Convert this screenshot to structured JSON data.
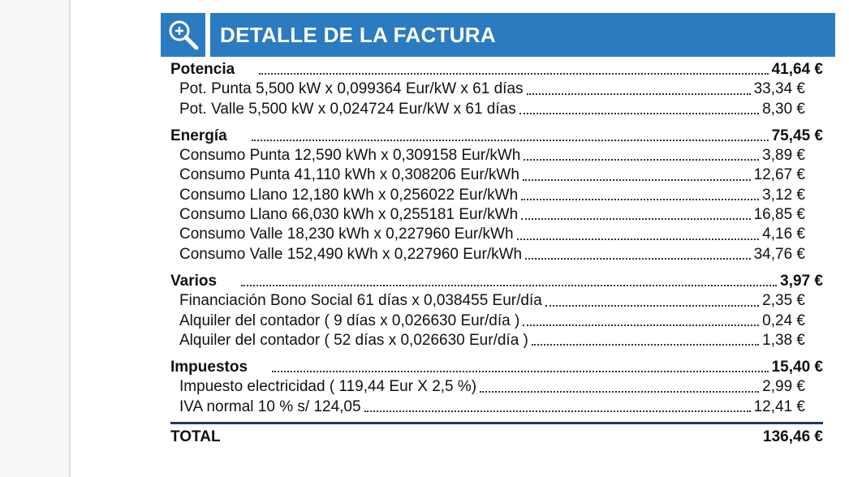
{
  "header": {
    "title": "DETALLE DE LA FACTURA",
    "icon": "zoom-in-icon"
  },
  "colors": {
    "header_bg": "#2b7bc0",
    "header_text": "#ffffff",
    "total_rule": "#1f3a6a"
  },
  "sections": [
    {
      "label": "Potencia",
      "amount": "41,64 €",
      "items": [
        {
          "label": "Pot. Punta 5,500  kW x 0,099364  Eur/kW x 61  días",
          "amount": "33,34 €"
        },
        {
          "label": "Pot. Valle 5,500  kW x 0,024724  Eur/kW x 61  días",
          "amount": "8,30 €"
        }
      ]
    },
    {
      "label": "Energía",
      "amount": "75,45 €",
      "items": [
        {
          "label": "Consumo Punta 12,590  kWh x 0,309158  Eur/kWh",
          "amount": "3,89 €"
        },
        {
          "label": "Consumo Punta 41,110  kWh x 0,308206  Eur/kWh",
          "amount": "12,67 €"
        },
        {
          "label": "Consumo Llano 12,180  kWh x 0,256022  Eur/kWh",
          "amount": "3,12 €"
        },
        {
          "label": "Consumo Llano 66,030  kWh x 0,255181  Eur/kWh",
          "amount": "16,85 €"
        },
        {
          "label": "Consumo Valle 18,230  kWh x 0,227960  Eur/kWh",
          "amount": "4,16 €"
        },
        {
          "label": "Consumo Valle 152,490  kWh x 0,227960  Eur/kWh",
          "amount": "34,76 €"
        }
      ]
    },
    {
      "label": "Varios",
      "amount": "3,97 €",
      "items": [
        {
          "label": "Financiación Bono Social 61  días x 0,038455 Eur/día",
          "amount": "2,35 €"
        },
        {
          "label": "Alquiler del contador ( 9  días x 0,026630  Eur/día )",
          "amount": "0,24 €"
        },
        {
          "label": "Alquiler del contador ( 52  días x 0,026630  Eur/día )",
          "amount": "1,38 €"
        }
      ]
    },
    {
      "label": "Impuestos",
      "amount": "15,40 €",
      "items": [
        {
          "label": "Impuesto electricidad ( 119,44  Eur X 2,5  %)",
          "amount": "2,99 €"
        },
        {
          "label": "IVA normal 10 %    s/ 124,05",
          "amount": "12,41 €"
        }
      ]
    }
  ],
  "total": {
    "label": "TOTAL",
    "amount": "136,46 €"
  }
}
